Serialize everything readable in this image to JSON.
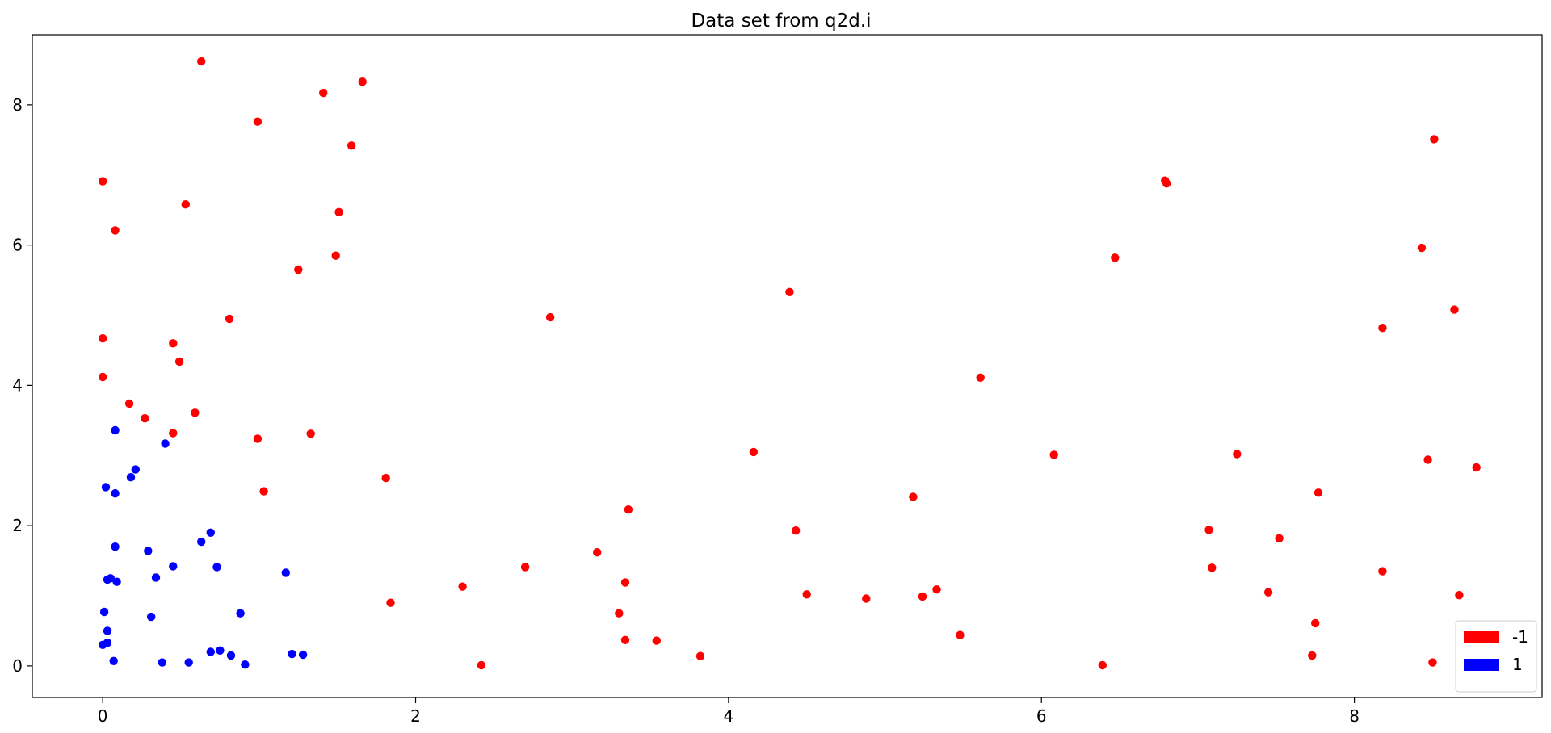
{
  "chart_data": {
    "type": "scatter",
    "title": "Data set from q2d.i",
    "xlabel": "",
    "ylabel": "",
    "xlim": [
      -0.45,
      9.2
    ],
    "ylim": [
      -0.45,
      9.0
    ],
    "xticks": [
      0,
      2,
      4,
      6,
      8
    ],
    "yticks": [
      0,
      2,
      4,
      6,
      8
    ],
    "grid": false,
    "legend_position": "lower-right",
    "series": [
      {
        "name": "-1",
        "color": "#ff0000",
        "points": [
          [
            0.63,
            8.62
          ],
          [
            1.41,
            8.17
          ],
          [
            1.66,
            8.33
          ],
          [
            0.99,
            7.76
          ],
          [
            1.59,
            7.42
          ],
          [
            0.0,
            6.91
          ],
          [
            0.53,
            6.58
          ],
          [
            1.51,
            6.47
          ],
          [
            0.08,
            6.21
          ],
          [
            1.25,
            5.65
          ],
          [
            1.49,
            5.85
          ],
          [
            0.81,
            4.95
          ],
          [
            0.0,
            4.67
          ],
          [
            0.45,
            4.6
          ],
          [
            0.49,
            4.34
          ],
          [
            0.0,
            4.12
          ],
          [
            0.17,
            3.74
          ],
          [
            0.27,
            3.53
          ],
          [
            0.59,
            3.61
          ],
          [
            0.45,
            3.32
          ],
          [
            0.99,
            3.24
          ],
          [
            1.33,
            3.31
          ],
          [
            1.81,
            2.68
          ],
          [
            1.03,
            2.49
          ],
          [
            1.84,
            0.9
          ],
          [
            2.3,
            1.13
          ],
          [
            2.42,
            0.01
          ],
          [
            2.7,
            1.41
          ],
          [
            2.86,
            4.97
          ],
          [
            3.16,
            1.62
          ],
          [
            3.3,
            0.75
          ],
          [
            3.34,
            1.19
          ],
          [
            3.34,
            0.37
          ],
          [
            3.36,
            2.23
          ],
          [
            3.54,
            0.36
          ],
          [
            3.82,
            0.14
          ],
          [
            4.16,
            3.05
          ],
          [
            4.39,
            5.33
          ],
          [
            4.43,
            1.93
          ],
          [
            4.5,
            1.02
          ],
          [
            4.88,
            0.96
          ],
          [
            5.18,
            2.41
          ],
          [
            5.24,
            0.99
          ],
          [
            5.33,
            1.09
          ],
          [
            5.48,
            0.44
          ],
          [
            5.61,
            4.11
          ],
          [
            6.08,
            3.01
          ],
          [
            6.39,
            0.01
          ],
          [
            6.47,
            5.82
          ],
          [
            6.79,
            6.92
          ],
          [
            6.8,
            6.88
          ],
          [
            7.07,
            1.94
          ],
          [
            7.09,
            1.4
          ],
          [
            7.25,
            3.02
          ],
          [
            7.45,
            1.05
          ],
          [
            7.52,
            1.82
          ],
          [
            7.73,
            0.15
          ],
          [
            7.75,
            0.61
          ],
          [
            7.77,
            2.47
          ],
          [
            8.18,
            4.82
          ],
          [
            8.18,
            1.35
          ],
          [
            8.43,
            5.96
          ],
          [
            8.47,
            2.94
          ],
          [
            8.5,
            0.05
          ],
          [
            8.51,
            7.51
          ],
          [
            8.64,
            5.08
          ],
          [
            8.67,
            1.01
          ],
          [
            8.78,
            2.83
          ]
        ]
      },
      {
        "name": "1",
        "color": "#0000ff",
        "points": [
          [
            0.08,
            3.36
          ],
          [
            0.4,
            3.17
          ],
          [
            0.21,
            2.8
          ],
          [
            0.18,
            2.69
          ],
          [
            0.02,
            2.55
          ],
          [
            0.08,
            2.46
          ],
          [
            0.69,
            1.9
          ],
          [
            0.63,
            1.77
          ],
          [
            0.08,
            1.7
          ],
          [
            0.29,
            1.64
          ],
          [
            0.45,
            1.42
          ],
          [
            0.73,
            1.41
          ],
          [
            1.17,
            1.33
          ],
          [
            0.34,
            1.26
          ],
          [
            0.05,
            1.25
          ],
          [
            0.09,
            1.2
          ],
          [
            0.03,
            1.23
          ],
          [
            0.01,
            0.77
          ],
          [
            0.88,
            0.75
          ],
          [
            0.31,
            0.7
          ],
          [
            0.03,
            0.5
          ],
          [
            0.03,
            0.33
          ],
          [
            0.0,
            0.3
          ],
          [
            0.69,
            0.2
          ],
          [
            0.75,
            0.22
          ],
          [
            0.82,
            0.15
          ],
          [
            1.21,
            0.17
          ],
          [
            1.28,
            0.16
          ],
          [
            0.07,
            0.07
          ],
          [
            0.38,
            0.05
          ],
          [
            0.55,
            0.05
          ],
          [
            0.91,
            0.02
          ]
        ]
      }
    ]
  }
}
